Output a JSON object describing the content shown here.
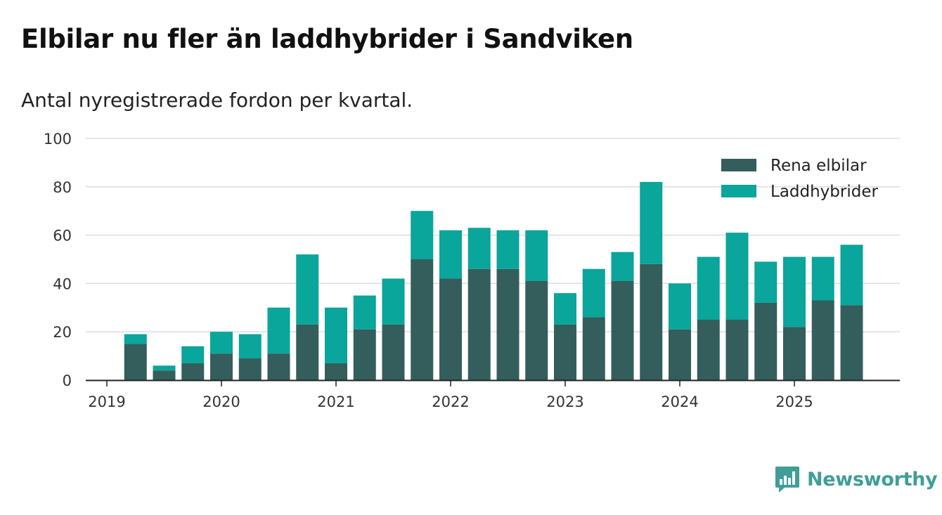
{
  "colors": {
    "electric": "#335e5b",
    "hybrid": "#0aa59b",
    "grid": "#dddddd",
    "axis": "#222222",
    "logo": "#3f9e98"
  },
  "chart_data": {
    "type": "bar",
    "stacked": true,
    "title": "Elbilar nu fler än laddhybrider i Sandviken",
    "subtitle": "Antal nyregistrerade fordon per kvartal.",
    "xlabel": "",
    "ylabel": "",
    "ylim": [
      0,
      100
    ],
    "yticks": [
      0,
      20,
      40,
      60,
      80,
      100
    ],
    "year_ticks": [
      "2019",
      "2020",
      "2021",
      "2022",
      "2023",
      "2024",
      "2025"
    ],
    "grid": true,
    "legend_position": "top-right",
    "categories": [
      "2019 Q2",
      "2019 Q3",
      "2019 Q4",
      "2020 Q1",
      "2020 Q2",
      "2020 Q3",
      "2020 Q4",
      "2021 Q1",
      "2021 Q2",
      "2021 Q3",
      "2021 Q4",
      "2022 Q1",
      "2022 Q2",
      "2022 Q3",
      "2022 Q4",
      "2023 Q1",
      "2023 Q2",
      "2023 Q3",
      "2023 Q4",
      "2024 Q1",
      "2024 Q2",
      "2024 Q3",
      "2024 Q4",
      "2025 Q1",
      "2025 Q2",
      "2025 Q3"
    ],
    "series": [
      {
        "name": "Rena elbilar",
        "values": [
          15,
          4,
          7,
          11,
          9,
          11,
          23,
          7,
          21,
          23,
          50,
          42,
          46,
          46,
          41,
          23,
          26,
          41,
          48,
          21,
          25,
          25,
          32,
          22,
          33,
          31
        ]
      },
      {
        "name": "Laddhybrider",
        "values": [
          4,
          2,
          7,
          9,
          10,
          19,
          29,
          23,
          14,
          19,
          20,
          20,
          17,
          16,
          21,
          13,
          20,
          12,
          34,
          19,
          26,
          36,
          17,
          29,
          18,
          25
        ]
      }
    ]
  },
  "branding": {
    "name": "Newsworthy",
    "icon": "bar-chart-speech-icon"
  }
}
